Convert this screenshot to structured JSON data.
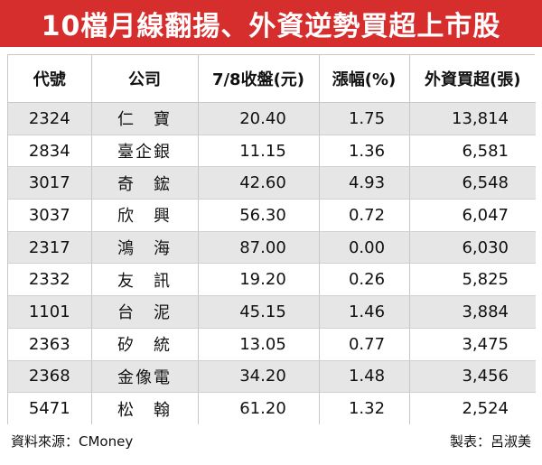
{
  "title": "10檔月線翻揚、外資逆勢買超上市股",
  "headers": [
    "代號",
    "公司",
    "7/8收盤(元)",
    "漲幅(%)",
    "外資買超(張)"
  ],
  "rows": [
    {
      "code": "2324",
      "name": "仁　寶",
      "close": "20.40",
      "change": "1.75",
      "buy": "13,814"
    },
    {
      "code": "2834",
      "name": "臺企銀",
      "close": "11.15",
      "change": "1.36",
      "buy": "6,581"
    },
    {
      "code": "3017",
      "name": "奇　鋐",
      "close": "42.60",
      "change": "4.93",
      "buy": "6,548"
    },
    {
      "code": "3037",
      "name": "欣　興",
      "close": "56.30",
      "change": "0.72",
      "buy": "6,047"
    },
    {
      "code": "2317",
      "name": "鴻　海",
      "close": "87.00",
      "change": "0.00",
      "buy": "6,030"
    },
    {
      "code": "2332",
      "name": "友　訊",
      "close": "19.20",
      "change": "0.26",
      "buy": "5,825"
    },
    {
      "code": "1101",
      "name": "台　泥",
      "close": "45.15",
      "change": "1.46",
      "buy": "3,884"
    },
    {
      "code": "2363",
      "name": "矽　統",
      "close": "13.05",
      "change": "0.77",
      "buy": "3,475"
    },
    {
      "code": "2368",
      "name": "金像電",
      "close": "34.20",
      "change": "1.48",
      "buy": "3,456"
    },
    {
      "code": "5471",
      "name": "松　翰",
      "close": "61.20",
      "change": "1.32",
      "buy": "2,524"
    }
  ],
  "footer": {
    "source": "資料來源：CMoney",
    "author": "製表：呂淑美"
  },
  "colors": {
    "title_bg": "#d62d2d",
    "stripe": "#e6e6e6"
  }
}
